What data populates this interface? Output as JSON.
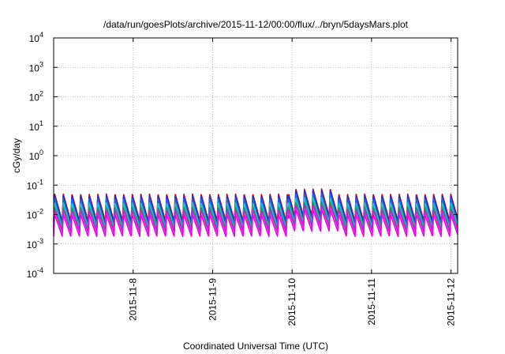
{
  "chart_data": {
    "type": "line",
    "title": "/data/run/goesPlots/archive/2015-11-12/00:00/flux/../bryn/5daysMars.plot",
    "xlabel": "Coordinated Universal Time (UTC)",
    "ylabel": "cGy/day",
    "y_scale": "log",
    "ylim": [
      0.0001,
      10000
    ],
    "xlim": [
      "2015-11-07T00:00",
      "2015-11-12T02:00"
    ],
    "grid": true,
    "legend": "none",
    "y_ticks": [
      {
        "base": "10",
        "exp": "-4",
        "value": 0.0001
      },
      {
        "base": "10",
        "exp": "-3",
        "value": 0.001
      },
      {
        "base": "10",
        "exp": "-2",
        "value": 0.01
      },
      {
        "base": "10",
        "exp": "-1",
        "value": 0.1
      },
      {
        "base": "10",
        "exp": "0",
        "value": 1
      },
      {
        "base": "10",
        "exp": "1",
        "value": 10
      },
      {
        "base": "10",
        "exp": "2",
        "value": 100
      },
      {
        "base": "10",
        "exp": "3",
        "value": 1000
      },
      {
        "base": "10",
        "exp": "4",
        "value": 10000
      }
    ],
    "x_ticks": [
      "2015-11-8",
      "2015-11-9",
      "2015-11-10",
      "2015-11-11",
      "2015-11-12"
    ],
    "x_tick_values": [
      "2015-11-08T00:00",
      "2015-11-09T00:00",
      "2015-11-10T00:00",
      "2015-11-11T00:00",
      "2015-11-12T00:00"
    ],
    "orbit_period_hours": 2.6,
    "series": [
      {
        "color": "#dd0000",
        "peak": 0.05,
        "trough": 0.006
      },
      {
        "color": "#2233cc",
        "peak": 0.045,
        "trough": 0.005
      },
      {
        "color": "#1a66dd",
        "peak": 0.035,
        "trough": 0.004
      },
      {
        "color": "#22c0c8",
        "peak": 0.025,
        "trough": 0.0035
      },
      {
        "color": "#1a9a6a",
        "peak": 0.018,
        "trough": 0.003
      },
      {
        "color": "#cc22cc",
        "peak": 0.014,
        "trough": 0.0025
      },
      {
        "color": "#ee00ee",
        "peak": 0.01,
        "trough": 0.0018
      }
    ],
    "enhancement_window": [
      "2015-11-09T23:00",
      "2015-11-10T14:00"
    ],
    "enhancement_factor": 1.5
  }
}
